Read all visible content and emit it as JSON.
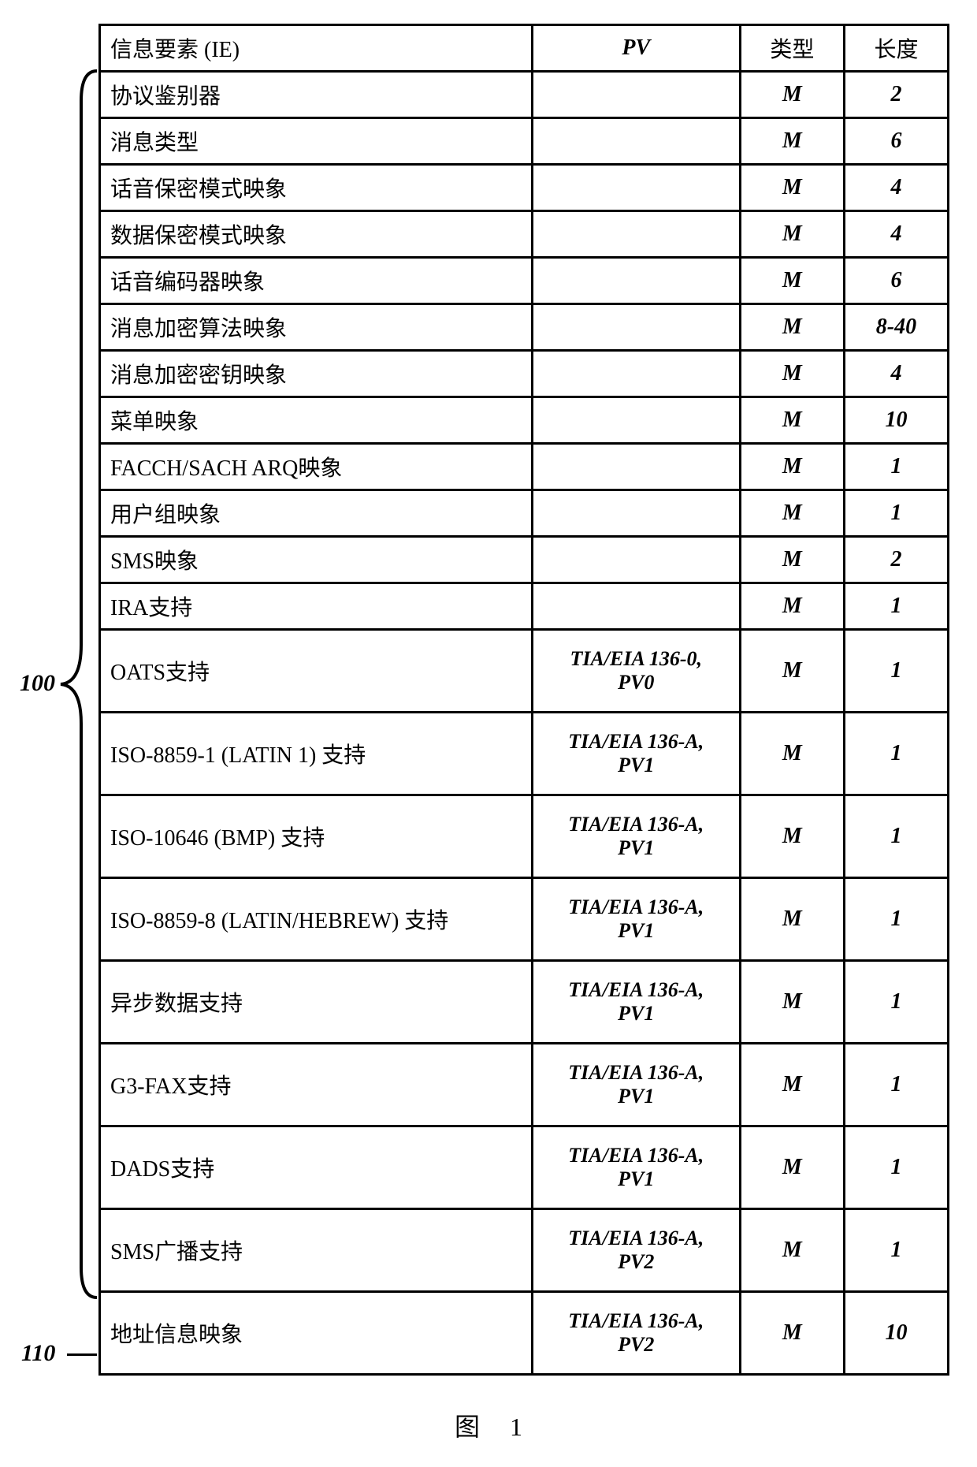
{
  "annotations": {
    "ref_100": "100",
    "ref_110": "110"
  },
  "headers": {
    "ie": "信息要素 (IE)",
    "pv": "PV",
    "type": "类型",
    "len": "长度"
  },
  "rows": [
    {
      "ie": "协议鉴别器",
      "pv": "",
      "type": "M",
      "len": "2",
      "tall": false
    },
    {
      "ie": "消息类型",
      "pv": "",
      "type": "M",
      "len": "6",
      "tall": false
    },
    {
      "ie": "话音保密模式映象",
      "pv": "",
      "type": "M",
      "len": "4",
      "tall": false
    },
    {
      "ie": "数据保密模式映象",
      "pv": "",
      "type": "M",
      "len": "4",
      "tall": false
    },
    {
      "ie": "话音编码器映象",
      "pv": "",
      "type": "M",
      "len": "6",
      "tall": false
    },
    {
      "ie": "消息加密算法映象",
      "pv": "",
      "type": "M",
      "len": "8-40",
      "tall": false
    },
    {
      "ie": "消息加密密钥映象",
      "pv": "",
      "type": "M",
      "len": "4",
      "tall": false
    },
    {
      "ie": "菜单映象",
      "pv": "",
      "type": "M",
      "len": "10",
      "tall": false
    },
    {
      "ie": "FACCH/SACH ARQ映象",
      "pv": "",
      "type": "M",
      "len": "1",
      "tall": false
    },
    {
      "ie": "用户组映象",
      "pv": "",
      "type": "M",
      "len": "1",
      "tall": false
    },
    {
      "ie": "SMS映象",
      "pv": "",
      "type": "M",
      "len": "2",
      "tall": false
    },
    {
      "ie": "IRA支持",
      "pv": "",
      "type": "M",
      "len": "1",
      "tall": false
    },
    {
      "ie": "OATS支持",
      "pv": "TIA/EIA 136-0,\nPV0",
      "type": "M",
      "len": "1",
      "tall": true
    },
    {
      "ie": "ISO-8859-1 (LATIN 1) 支持",
      "pv": "TIA/EIA 136-A,\nPV1",
      "type": "M",
      "len": "1",
      "tall": true
    },
    {
      "ie": "ISO-10646 (BMP) 支持",
      "pv": "TIA/EIA 136-A,\nPV1",
      "type": "M",
      "len": "1",
      "tall": true
    },
    {
      "ie": "ISO-8859-8 (LATIN/HEBREW) 支持",
      "pv": "TIA/EIA 136-A,\nPV1",
      "type": "M",
      "len": "1",
      "tall": true
    },
    {
      "ie": "异步数据支持",
      "pv": "TIA/EIA 136-A,\nPV1",
      "type": "M",
      "len": "1",
      "tall": true
    },
    {
      "ie": "G3-FAX支持",
      "pv": "TIA/EIA 136-A,\nPV1",
      "type": "M",
      "len": "1",
      "tall": true
    },
    {
      "ie": "DADS支持",
      "pv": "TIA/EIA 136-A,\nPV1",
      "type": "M",
      "len": "1",
      "tall": true
    },
    {
      "ie": "SMS广播支持",
      "pv": "TIA/EIA 136-A,\nPV2",
      "type": "M",
      "len": "1",
      "tall": true
    },
    {
      "ie": "地址信息映象",
      "pv": "TIA/EIA 136-A,\nPV2",
      "type": "M",
      "len": "10",
      "tall": true
    }
  ],
  "caption": {
    "label": "图",
    "num": "1"
  }
}
